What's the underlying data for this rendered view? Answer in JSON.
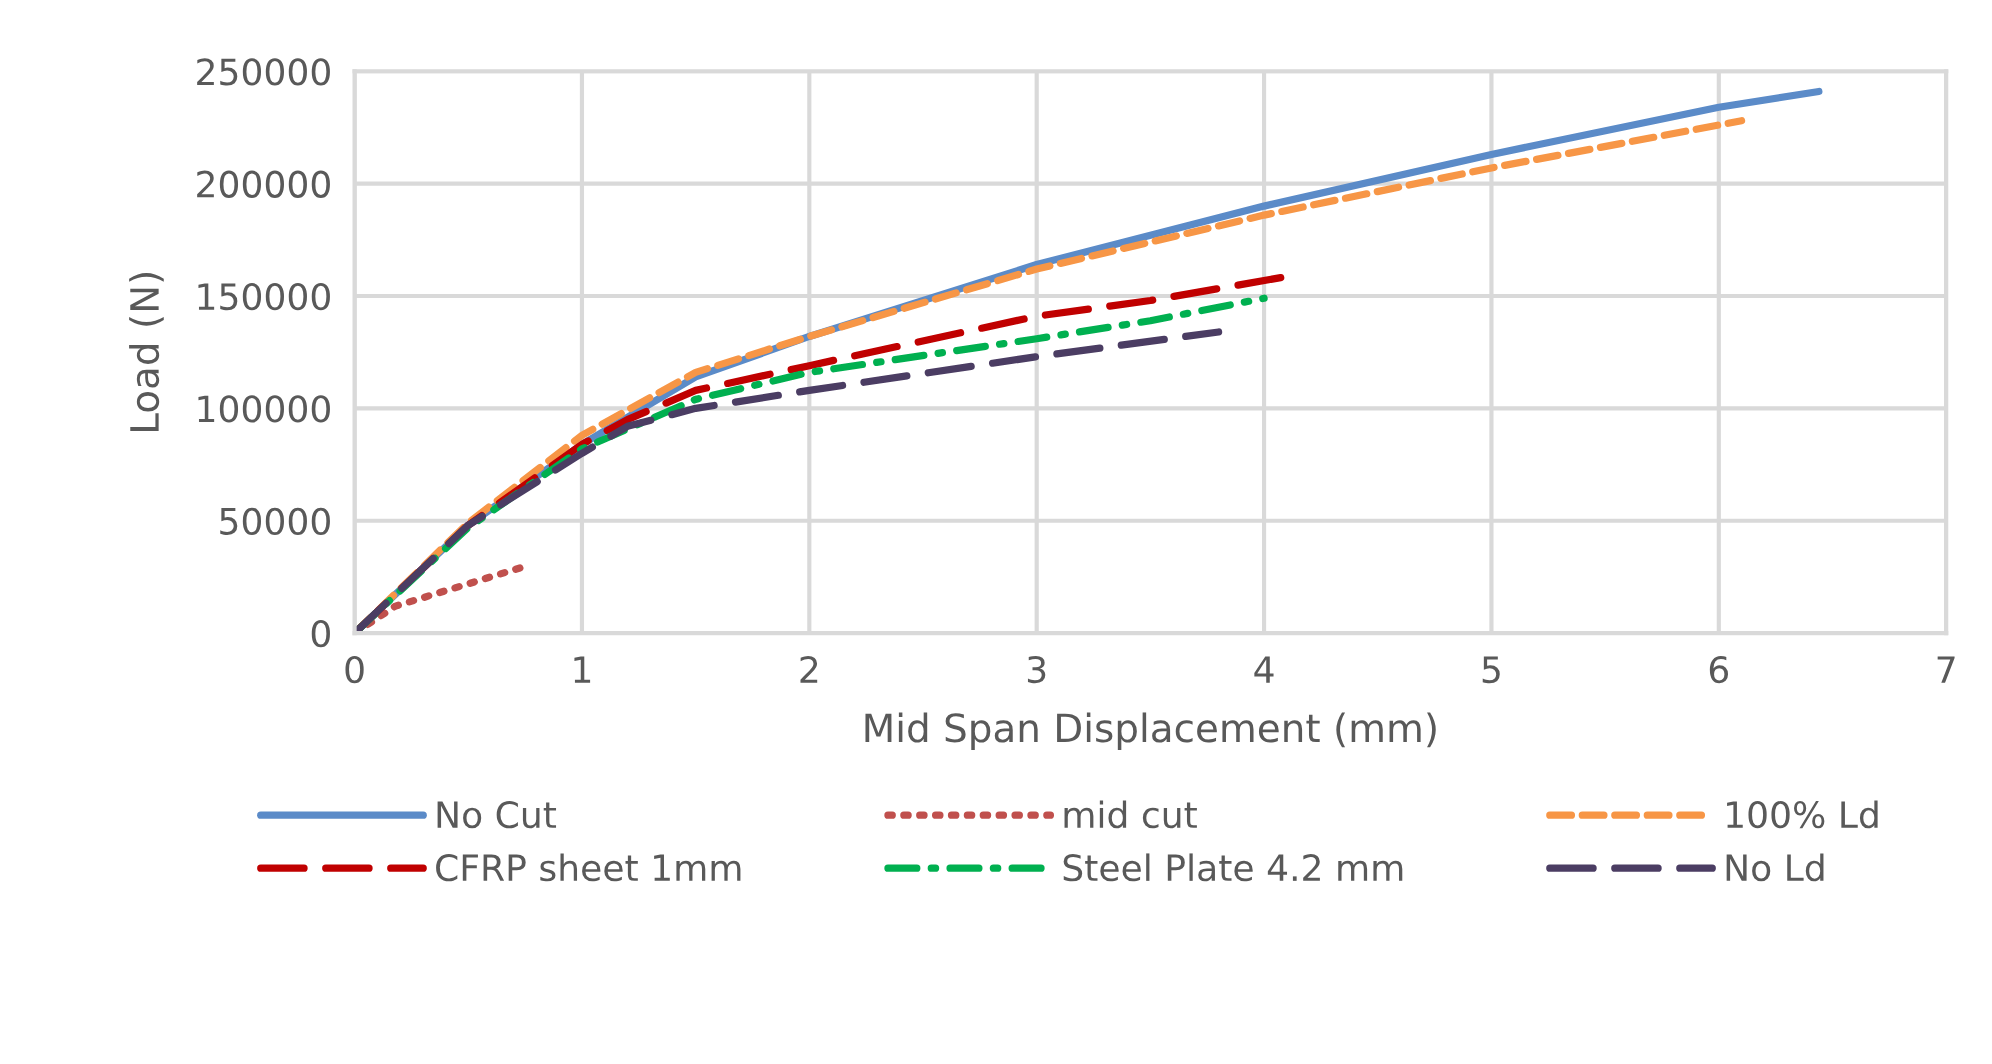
{
  "chart_data": {
    "type": "line",
    "xlabel": "Mid Span Displacement (mm)",
    "ylabel": "Load (N)",
    "xlim": [
      0,
      7
    ],
    "xticks": [
      0,
      1,
      2,
      3,
      4,
      5,
      6,
      7
    ],
    "ylim": [
      0,
      250000
    ],
    "yticks": [
      0,
      50000,
      100000,
      150000,
      200000,
      250000
    ],
    "grid": true,
    "legend": "bottom",
    "marker": "none",
    "series": [
      {
        "name": "No Cut",
        "color": "#5b8bc8",
        "line_style": "solid",
        "x": [
          0,
          0.5,
          1,
          1.5,
          2,
          3,
          4,
          5,
          6,
          6.44
        ],
        "values": [
          0,
          48000,
          84000,
          114000,
          132000,
          164000,
          190000,
          213000,
          234000,
          241000
        ]
      },
      {
        "name": "mid cut",
        "color": "#c0504d",
        "line_style": "dotted",
        "x": [
          0,
          0.18,
          0.76
        ],
        "values": [
          0,
          12000,
          30000
        ]
      },
      {
        "name": "100% Ld",
        "color": "#f79646",
        "line_style": "dashed",
        "x": [
          0,
          0.5,
          1,
          1.5,
          2,
          3,
          4,
          5,
          6.1
        ],
        "values": [
          0,
          49000,
          88000,
          116000,
          132000,
          162000,
          186000,
          207000,
          228000
        ]
      },
      {
        "name": "CFRP sheet 1mm",
        "color": "#c00000",
        "line_style": "longdash",
        "x": [
          0,
          0.5,
          1,
          1.2,
          1.5,
          2,
          3,
          3.5,
          4.12
        ],
        "values": [
          0,
          48000,
          84000,
          95000,
          108000,
          119000,
          141000,
          148000,
          159000
        ]
      },
      {
        "name": "Steel Plate 4.2 mm",
        "color": "#00b050",
        "line_style": "dashdot",
        "x": [
          0,
          0.5,
          1,
          1.5,
          2,
          3,
          3.5,
          4.0
        ],
        "values": [
          0,
          47000,
          82000,
          104000,
          116000,
          131000,
          139000,
          149000
        ]
      },
      {
        "name": "No Ld",
        "color": "#4b3d63",
        "line_style": "longdash",
        "x": [
          0,
          0.5,
          1,
          1.2,
          1.5,
          2,
          3,
          3.8
        ],
        "values": [
          0,
          48000,
          80000,
          92000,
          100000,
          108000,
          123000,
          134000
        ]
      }
    ]
  }
}
